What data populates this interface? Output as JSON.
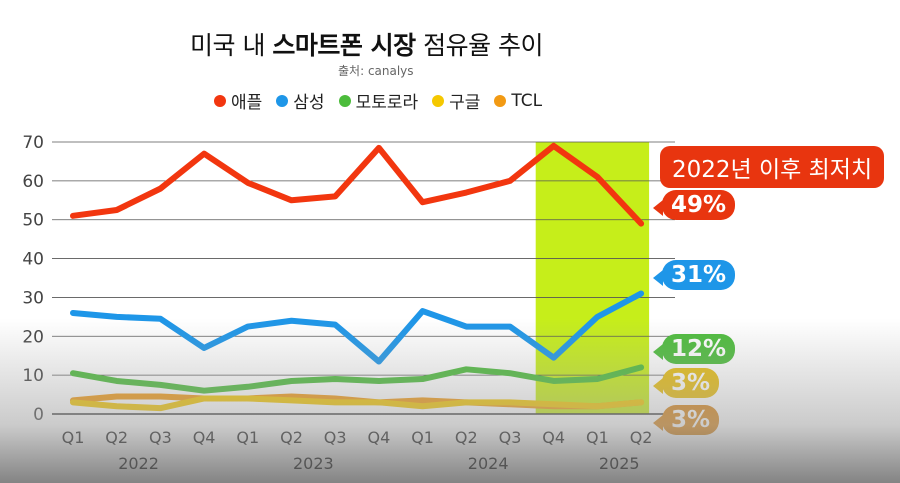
{
  "title": {
    "prefix": "미국 내 ",
    "bold": "스마트폰 시장",
    "suffix": " 점유율 추이"
  },
  "source": "출처: canalys",
  "note": "2022년 이후 최저치",
  "colors": {
    "apple": "#f2360f",
    "samsung": "#1e96e8",
    "motorola": "#4cbc3b",
    "google": "#f5c800",
    "tcl": "#f29a13",
    "highlight": "#c6ee1a"
  },
  "chart_data": {
    "type": "line",
    "categories": [
      "Q1",
      "Q2",
      "Q3",
      "Q4",
      "Q1",
      "Q2",
      "Q3",
      "Q4",
      "Q1",
      "Q2",
      "Q3",
      "Q4",
      "Q1",
      "Q2"
    ],
    "years": [
      {
        "label": "2022",
        "from": 0,
        "to": 3
      },
      {
        "label": "2023",
        "from": 4,
        "to": 7
      },
      {
        "label": "2024",
        "from": 8,
        "to": 11
      },
      {
        "label": "2025",
        "from": 12,
        "to": 13
      }
    ],
    "ylim": [
      0,
      70
    ],
    "yticks": [
      0,
      10,
      20,
      30,
      40,
      50,
      60,
      70
    ],
    "grid": true,
    "highlight_range": [
      11,
      13
    ],
    "series": [
      {
        "name": "애플",
        "key": "apple",
        "values": [
          51,
          52.5,
          58,
          67,
          59.5,
          55,
          56,
          68.5,
          54.5,
          57,
          60,
          69,
          61,
          49
        ],
        "end_label": "49%"
      },
      {
        "name": "삼성",
        "key": "samsung",
        "values": [
          26,
          25,
          24.5,
          17,
          22.5,
          24,
          23,
          13.5,
          26.5,
          22.5,
          22.5,
          14.5,
          25,
          31
        ],
        "end_label": "31%"
      },
      {
        "name": "모토로라",
        "key": "motorola",
        "values": [
          10.5,
          8.5,
          7.5,
          6,
          7,
          8.5,
          9,
          8.5,
          9,
          11.5,
          10.5,
          8.5,
          9,
          12
        ],
        "end_label": "12%"
      },
      {
        "name": "구글",
        "key": "google",
        "values": [
          3,
          2,
          1.5,
          4,
          4,
          3.5,
          3,
          3,
          2,
          3,
          3,
          2.5,
          2,
          3
        ],
        "end_label": "3%"
      },
      {
        "name": "TCL",
        "key": "tcl",
        "values": [
          3.5,
          4.5,
          4.5,
          4,
          4,
          4.5,
          4,
          3,
          3.5,
          3,
          2.5,
          2,
          2,
          3
        ],
        "end_label": "3%"
      }
    ]
  }
}
